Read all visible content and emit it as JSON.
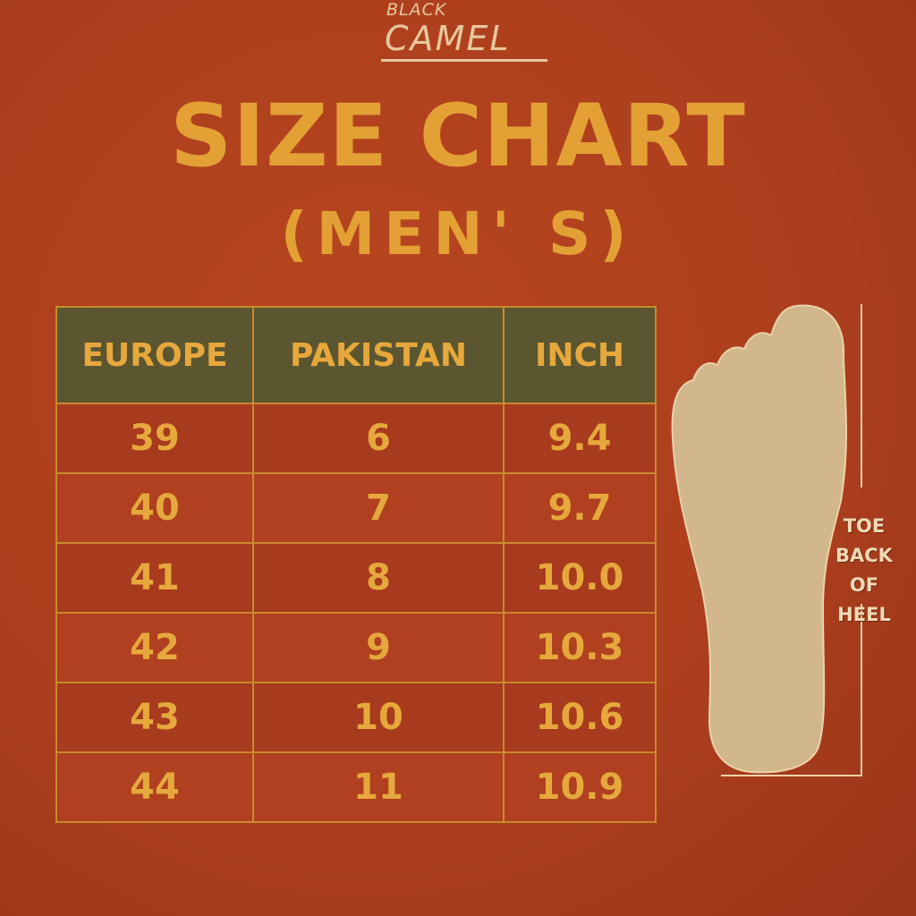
{
  "brand": {
    "line1": "BLACK",
    "line2": "CAMEL"
  },
  "title": "SIZE CHART",
  "subtitle": "(MEN' S)",
  "table": {
    "headers": [
      "EUROPE",
      "PAKISTAN",
      "INCH"
    ],
    "rows": [
      [
        "39",
        "6",
        "9.4"
      ],
      [
        "40",
        "7",
        "9.7"
      ],
      [
        "41",
        "8",
        "10.0"
      ],
      [
        "42",
        "9",
        "10.3"
      ],
      [
        "43",
        "10",
        "10.6"
      ],
      [
        "44",
        "11",
        "10.9"
      ]
    ]
  },
  "measure_label": {
    "l1": "TOE",
    "l2": "BACK",
    "l3": "OF",
    "l4": "HEEL"
  },
  "colors": {
    "background": "#b0421f",
    "title": "#e3a035",
    "header_bg": "#5b5630",
    "foot": "#d2b68c"
  }
}
